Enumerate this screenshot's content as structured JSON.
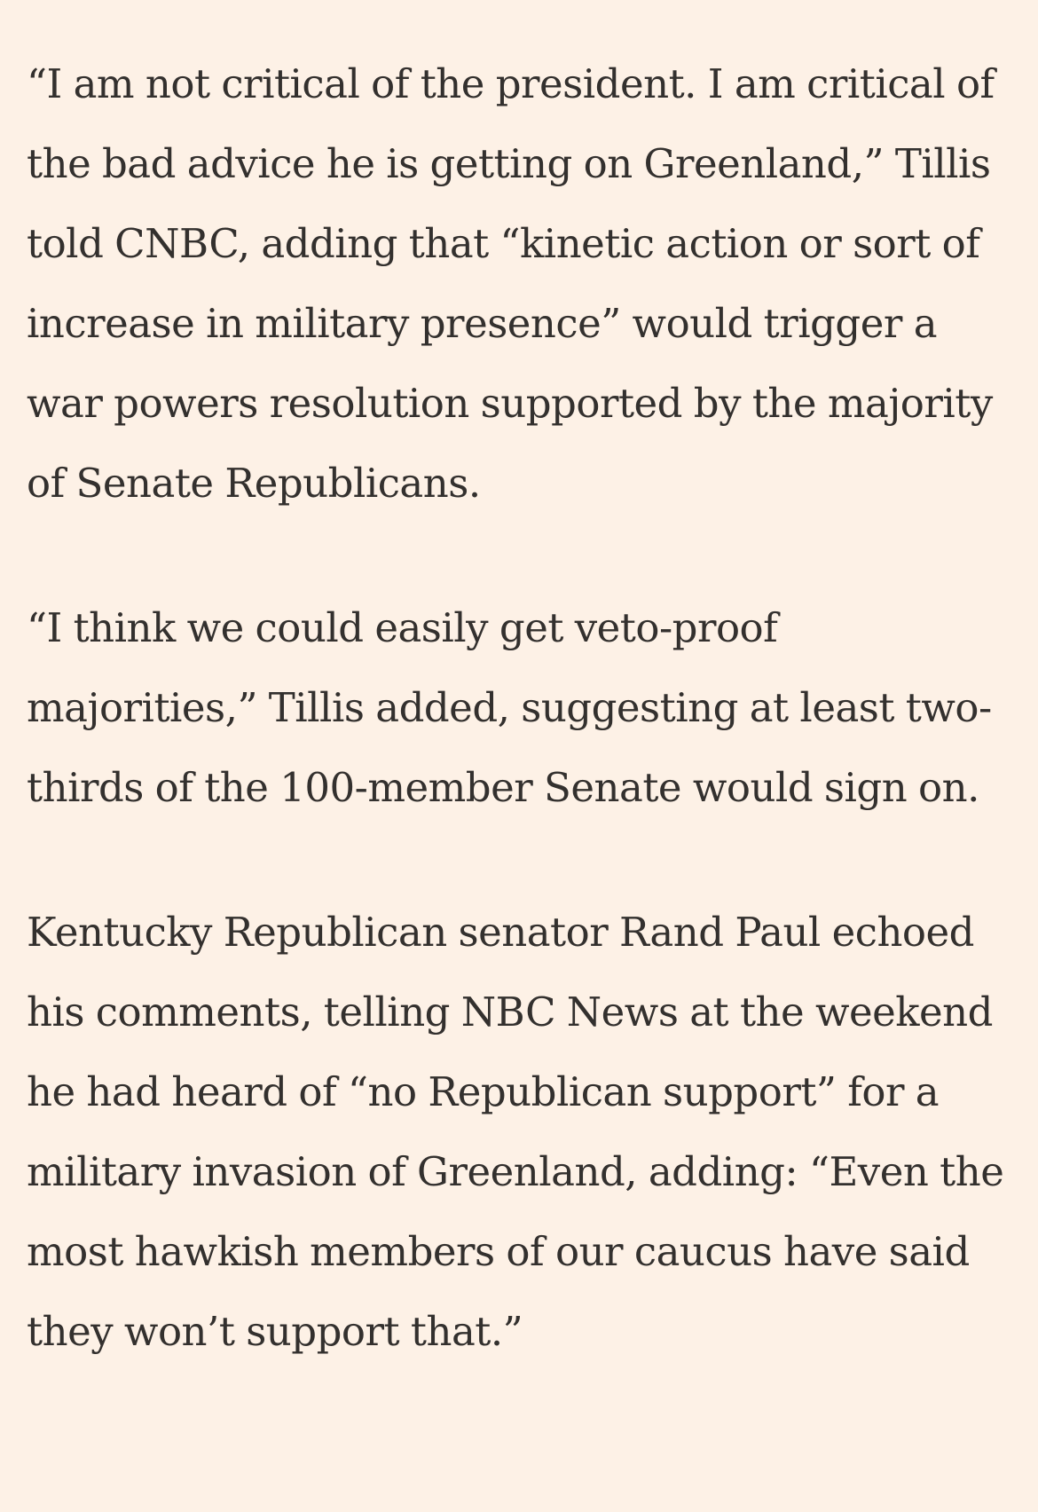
{
  "article": {
    "paragraphs": [
      "“I am not critical of the president. I am critical of the bad advice he is getting on Greenland,” Tillis told CNBC, adding that “kinetic action or sort of increase in military presence” would trigger a war powers resolution supported by the majority of Senate Republicans.",
      "“I think we could easily get veto-proof majorities,” Tillis added, suggesting at least two-thirds of the 100-member Senate would sign on.",
      "Kentucky Republican senator Rand Paul echoed his comments, telling NBC News at the weekend he had heard of “no Republican support” for a military invasion of Greenland, adding: “Even the most hawkish members of our caucus have said they won’t support that.”"
    ]
  }
}
